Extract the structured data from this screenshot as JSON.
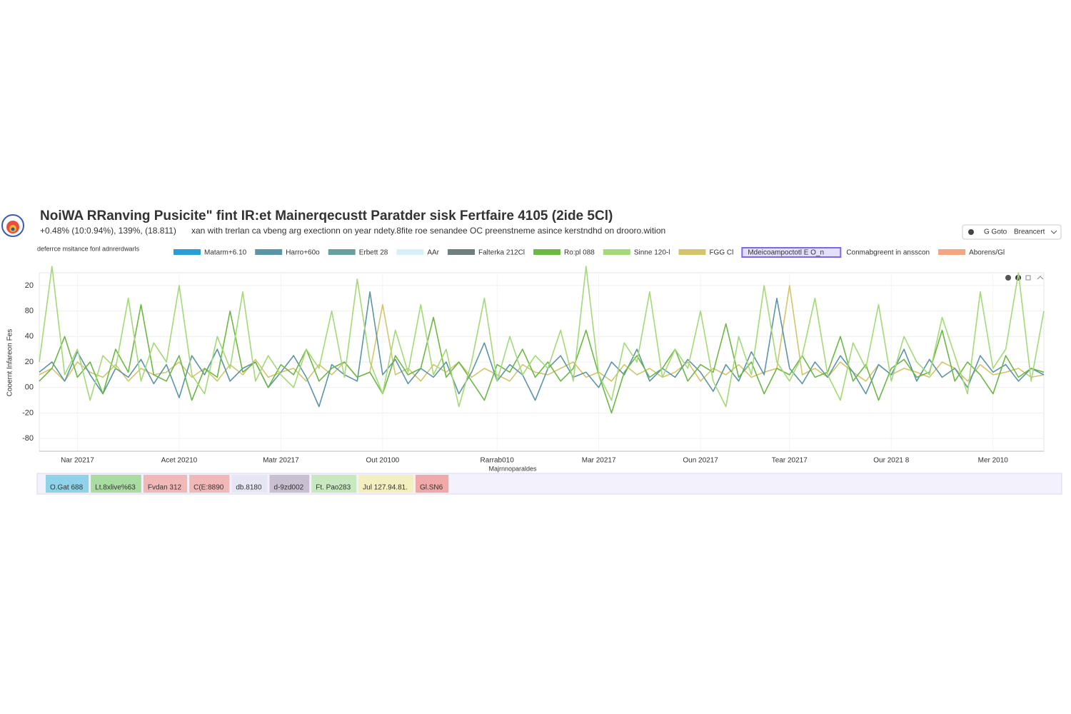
{
  "header": {
    "title": "NoiWA RRanving Pusicite\" fint IR:et Mainerqecustt Paratder sisk Fertfaire 4105 (2ide 5Cl)",
    "stats": "+0.48% (10:0.94%), 139%, (18.811)",
    "subtitle": "xan with trerlan ca vbeng arg exectionn on year ndety.8fite roe senandee OC preenstneme asince kerstndhd on drooro.wition"
  },
  "toolbar": {
    "buttons": [
      "G Goto",
      "Breancert"
    ]
  },
  "legend_heading": "deferrce msitance fonl adnrerdwarls",
  "legend_only": [
    {
      "name": "Matarm+6.10",
      "color": "#2a9fd6"
    },
    {
      "name": "Erbett 28",
      "color": "#6a9fa0"
    },
    {
      "name": "AAr",
      "color": "#d8f0f8"
    },
    {
      "name": "Falterka 212Cl",
      "color": "#6e7f80"
    },
    {
      "name": "Mdeicoampoctotl E O_n",
      "color": "#7b68ee"
    },
    {
      "name": "Conmabgreent in ansscon"
    },
    {
      "name": "Aborens/Gl",
      "color": "#f4a582"
    }
  ],
  "chart_data": {
    "type": "line",
    "y_label": "Cooernt Infareon Fes",
    "x_label": "Majrnnoparaldes",
    "xlim": [
      0,
      79
    ],
    "xticks": [
      {
        "value": 3,
        "label": "Nar 20217"
      },
      {
        "value": 11,
        "label": "Acet 20210"
      },
      {
        "value": 19,
        "label": "Matr 20217"
      },
      {
        "value": 27,
        "label": "Out 20100"
      },
      {
        "value": 36,
        "label": "Rarrab010"
      },
      {
        "value": 44,
        "label": "Mar 20217"
      },
      {
        "value": 52,
        "label": "Oun 20217"
      },
      {
        "value": 59,
        "label": "Tear 20217"
      },
      {
        "value": 67,
        "label": "Our 2021 8"
      },
      {
        "value": 75,
        "label": "Mer 2010"
      }
    ],
    "ylim": [
      -50,
      90
    ],
    "yticks": [
      {
        "value": 80,
        "label": "20"
      },
      {
        "value": 60,
        "label": "80"
      },
      40,
      20,
      {
        "value": 0,
        "label": "00"
      },
      -20,
      {
        "value": -40,
        "label": "-80"
      }
    ],
    "grid": true,
    "series": [
      {
        "name": "FGG Cl",
        "color": "#d4c46a",
        "values": [
          10,
          15,
          5,
          20,
          12,
          8,
          18,
          5,
          15,
          10,
          12,
          20,
          8,
          15,
          5,
          18,
          10,
          22,
          8,
          12,
          15,
          5,
          18,
          10,
          20,
          8,
          12,
          65,
          10,
          15,
          5,
          18,
          12,
          20,
          8,
          15,
          10,
          5,
          18,
          12,
          10,
          15,
          20,
          8,
          12,
          5,
          18,
          10,
          15,
          8,
          12,
          20,
          5,
          15,
          10,
          18,
          8,
          12,
          15,
          80,
          10,
          15,
          8,
          20,
          12,
          5,
          18,
          10,
          15,
          12,
          8,
          20,
          15,
          5,
          18,
          10,
          12,
          15,
          8,
          10
        ]
      },
      {
        "name": "Harro+60o",
        "color": "#5b95a8",
        "values": [
          12,
          20,
          5,
          28,
          10,
          -5,
          15,
          8,
          22,
          3,
          18,
          -8,
          25,
          10,
          30,
          5,
          15,
          20,
          0,
          12,
          25,
          8,
          -15,
          18,
          10,
          5,
          75,
          10,
          22,
          3,
          15,
          8,
          20,
          -5,
          12,
          35,
          5,
          18,
          10,
          -10,
          15,
          25,
          8,
          12,
          0,
          20,
          10,
          30,
          5,
          15,
          8,
          22,
          12,
          -3,
          18,
          5,
          28,
          10,
          70,
          15,
          3,
          20,
          8,
          25,
          12,
          -5,
          18,
          10,
          30,
          5,
          22,
          8,
          15,
          0,
          25,
          12,
          18,
          5,
          15,
          10
        ]
      },
      {
        "name": "Ro:pl 088",
        "color": "#6cb845",
        "values": [
          5,
          15,
          40,
          8,
          20,
          -5,
          30,
          12,
          65,
          10,
          5,
          25,
          -10,
          15,
          8,
          60,
          12,
          20,
          0,
          18,
          10,
          30,
          5,
          15,
          20,
          8,
          12,
          -5,
          25,
          10,
          15,
          55,
          8,
          20,
          5,
          -10,
          18,
          12,
          30,
          8,
          20,
          5,
          15,
          45,
          10,
          -20,
          12,
          25,
          8,
          15,
          30,
          5,
          18,
          12,
          50,
          8,
          20,
          -5,
          15,
          10,
          25,
          8,
          12,
          40,
          5,
          18,
          -10,
          15,
          22,
          8,
          12,
          45,
          5,
          20,
          10,
          -5,
          25,
          8,
          15,
          12
        ]
      },
      {
        "name": "Sinne 120-l",
        "color": "#a3d977",
        "values": [
          20,
          95,
          10,
          30,
          -10,
          25,
          15,
          70,
          5,
          35,
          20,
          80,
          10,
          -5,
          40,
          15,
          75,
          5,
          25,
          10,
          0,
          30,
          15,
          60,
          8,
          85,
          20,
          -5,
          45,
          12,
          65,
          10,
          30,
          -15,
          20,
          70,
          5,
          40,
          10,
          25,
          15,
          45,
          5,
          95,
          10,
          -10,
          35,
          20,
          75,
          8,
          30,
          15,
          60,
          5,
          -15,
          40,
          10,
          80,
          20,
          5,
          25,
          70,
          10,
          -10,
          35,
          15,
          65,
          5,
          40,
          20,
          10,
          55,
          25,
          -5,
          75,
          15,
          30,
          90,
          5,
          60
        ]
      }
    ]
  },
  "navigator": {
    "chips": [
      {
        "label": "O.Gat 688",
        "color": "#8fd3ea"
      },
      {
        "label": "Lt.8xlive%63",
        "color": "#a8dca0"
      },
      {
        "label": "Fvdan 312",
        "color": "#f2b8b8"
      },
      {
        "label": "C(E:8890",
        "color": "#f2b8b8"
      },
      {
        "label": "db.8180",
        "color": "#e6e6f5"
      },
      {
        "label": "d-9zd002",
        "color": "#c9bfd0"
      },
      {
        "label": "Ft. Pao283",
        "color": "#c8e8c0"
      },
      {
        "label": "Jul 127.94.81.",
        "color": "#f3efc0"
      },
      {
        "label": "Gl.SN6",
        "color": "#f0a8a8"
      }
    ]
  }
}
